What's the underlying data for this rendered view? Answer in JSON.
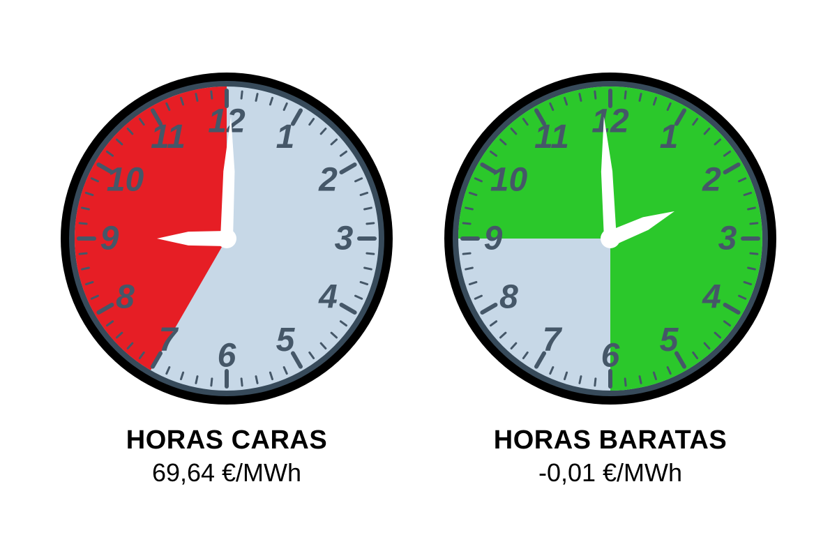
{
  "colors": {
    "background": "#ffffff",
    "face": "#c7d8e7",
    "numeral": "#455768",
    "tick": "#455768",
    "rim_outer": "#000000",
    "rim_inner": "#374a5a",
    "hand": "#ffffff",
    "highlight_expensive": "#e61e25",
    "highlight_cheap": "#2bc82b",
    "text": "#000000"
  },
  "geometry": {
    "size": 480,
    "rim_outer_r": 238,
    "rim_inner_r": 226,
    "face_r": 218,
    "tick_outer_r": 212,
    "tick_inner_major": 190,
    "tick_inner_minor": 202,
    "numeral_r": 168,
    "hour_hand_len": 100,
    "minute_hand_len": 175,
    "hub_r": 14
  },
  "font": {
    "numeral_size": 48,
    "numeral_family": "Arial, Helvetica, sans-serif",
    "numeral_weight": "600",
    "caption_title_size": 38,
    "caption_price_size": 36
  },
  "clocks": [
    {
      "id": "expensive",
      "title": "HORAS CARAS",
      "price": "69,64 €/MWh",
      "hour_hand_angle": 270,
      "minute_hand_angle": 2,
      "highlight_color_key": "highlight_expensive",
      "sectors": [
        {
          "start_deg": 210,
          "end_deg": 360
        }
      ]
    },
    {
      "id": "cheap",
      "title": "HORAS BARATAS",
      "price": "-0,01 €/MWh",
      "hour_hand_angle": 67,
      "minute_hand_angle": 357,
      "highlight_color_key": "highlight_cheap",
      "sectors": [
        {
          "start_deg": 270,
          "end_deg": 360
        },
        {
          "start_deg": 0,
          "end_deg": 180
        }
      ]
    }
  ]
}
